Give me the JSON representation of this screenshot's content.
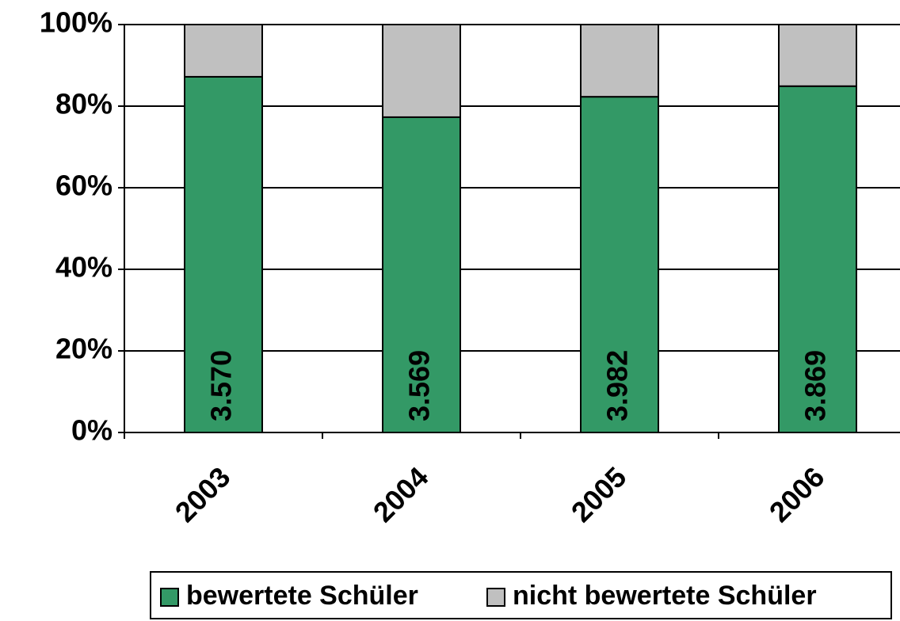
{
  "chart_data": {
    "type": "stacked_bar",
    "categories": [
      "2003",
      "2004",
      "2005",
      "2006"
    ],
    "series": [
      {
        "name": "bewertete Schüler",
        "color": "#339966",
        "values": [
          87.2,
          77.3,
          82.3,
          84.9
        ]
      },
      {
        "name": "nicht bewertete Schüler",
        "color": "#c0c0c0",
        "values": [
          12.8,
          22.7,
          17.7,
          15.1
        ]
      }
    ],
    "bar_labels": [
      "3.570",
      "3.569",
      "3.982",
      "3.869"
    ],
    "ylim": [
      0,
      100
    ],
    "yticks": [
      {
        "value": 0,
        "label": "0%"
      },
      {
        "value": 20,
        "label": "20%"
      },
      {
        "value": 40,
        "label": "40%"
      },
      {
        "value": 60,
        "label": "60%"
      },
      {
        "value": 80,
        "label": "80%"
      },
      {
        "value": 100,
        "label": "100%"
      }
    ],
    "grid": true,
    "legend": "bottom"
  }
}
